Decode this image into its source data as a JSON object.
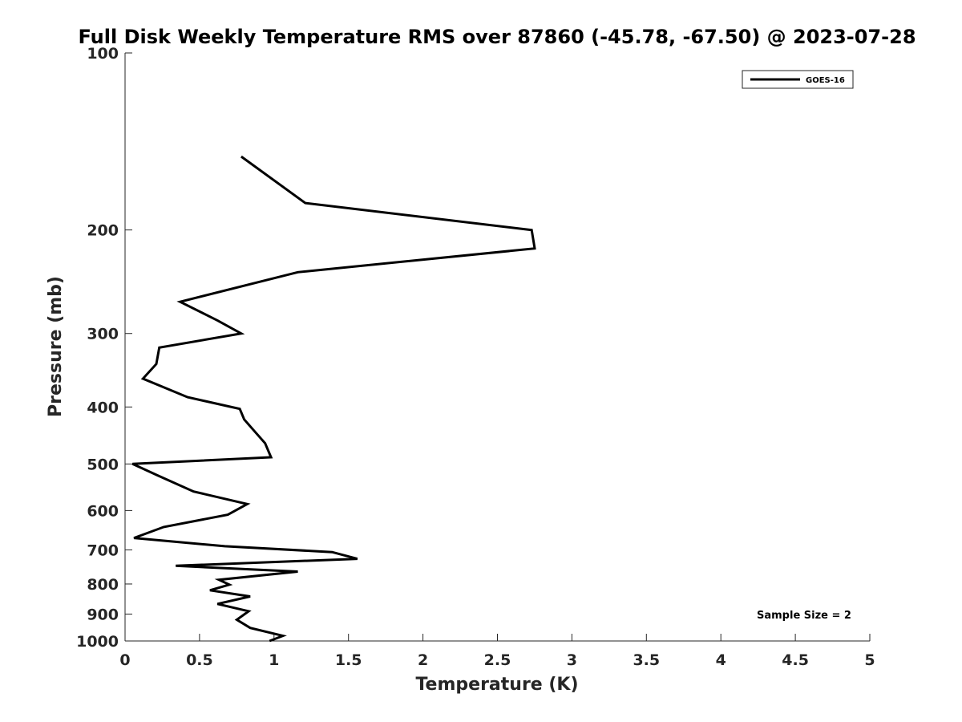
{
  "chart_data": {
    "type": "line",
    "title": "Full Disk Weekly Temperature RMS over 87860 (-45.78, -67.50) @ 2023-07-28",
    "xlabel": "Temperature (K)",
    "ylabel": "Pressure (mb)",
    "xlim": [
      0,
      5
    ],
    "ylim": [
      100,
      1000
    ],
    "y_scale": "log",
    "y_reversed": true,
    "grid": false,
    "legend_position": "top-right",
    "x_ticks": [
      "0",
      "0.5",
      "1",
      "1.5",
      "2",
      "2.5",
      "3",
      "3.5",
      "4",
      "4.5",
      "5"
    ],
    "x_tick_values": [
      0,
      0.5,
      1,
      1.5,
      2,
      2.5,
      3,
      3.5,
      4,
      4.5,
      5
    ],
    "y_ticks": [
      "100",
      "200",
      "300",
      "400",
      "500",
      "600",
      "700",
      "800",
      "900",
      "1000"
    ],
    "y_tick_values": [
      100,
      200,
      300,
      400,
      500,
      600,
      700,
      800,
      900,
      1000
    ],
    "series": [
      {
        "name": "GOES-16",
        "color": "#000000",
        "x": [
          0.78,
          1.21,
          2.73,
          2.75,
          1.16,
          0.37,
          0.62,
          0.78,
          0.23,
          0.21,
          0.12,
          0.42,
          0.77,
          0.8,
          0.87,
          0.94,
          0.98,
          0.05,
          0.22,
          0.46,
          0.82,
          0.69,
          0.26,
          0.06,
          0.67,
          1.39,
          1.56,
          0.34,
          1.16,
          0.63,
          0.7,
          0.57,
          0.84,
          0.62,
          0.83,
          0.75,
          0.84,
          1.06,
          0.97
        ],
        "y": [
          150,
          180,
          200,
          215,
          236,
          265,
          285,
          300,
          317,
          338,
          358,
          385,
          403,
          420,
          440,
          461,
          487,
          500,
          523,
          557,
          585,
          610,
          640,
          668,
          690,
          706,
          725,
          745,
          762,
          787,
          802,
          820,
          840,
          865,
          890,
          920,
          950,
          980,
          1000
        ]
      }
    ],
    "annotation": "Sample Size = 2"
  }
}
